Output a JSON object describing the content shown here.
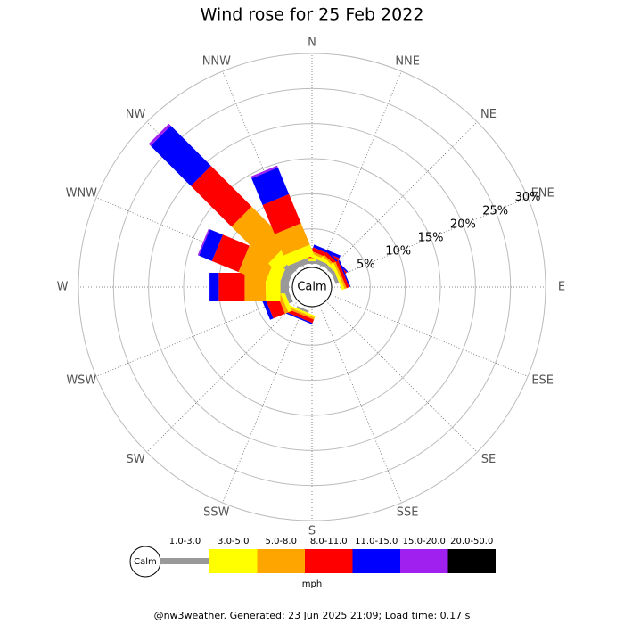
{
  "chart_data": {
    "type": "windrose",
    "title": "Wind rose for 25 Feb 2022",
    "directions": [
      "N",
      "NNE",
      "NE",
      "ENE",
      "E",
      "ESE",
      "SE",
      "SSE",
      "S",
      "SSW",
      "SW",
      "WSW",
      "W",
      "WNW",
      "NW",
      "NNW"
    ],
    "calm_label": "Calm",
    "rlim": [
      0,
      30
    ],
    "rticks": [
      {
        "value": 5,
        "label": "5%"
      },
      {
        "value": 10,
        "label": "10%"
      },
      {
        "value": 15,
        "label": "15%"
      },
      {
        "value": 20,
        "label": "20%"
      },
      {
        "value": 25,
        "label": "25%"
      },
      {
        "value": 30,
        "label": "30%"
      }
    ],
    "unit": "mph",
    "series": [
      {
        "name": "1.0-3.0",
        "color": "#999999",
        "values": [
          0.4,
          0.6,
          0.5,
          0.5,
          0,
          0,
          0,
          0,
          0,
          0.3,
          0,
          0.6,
          1.2,
          1.2,
          1.5,
          0.8
        ]
      },
      {
        "name": "3.0-5.0",
        "color": "#ffff00",
        "values": [
          0.3,
          0.5,
          0.4,
          0.4,
          0,
          0,
          0,
          0,
          0,
          0.3,
          0,
          0.6,
          2.1,
          1.9,
          2.0,
          1.6
        ]
      },
      {
        "name": "5.0-8.0",
        "color": "#ffa500",
        "values": [
          0.2,
          0.3,
          0.3,
          0.3,
          0,
          0,
          0,
          0,
          0,
          0.3,
          0,
          0.5,
          3.0,
          4.1,
          7.4,
          3.3
        ]
      },
      {
        "name": "8.0-11.0",
        "color": "#ff0000",
        "values": [
          0.3,
          0.6,
          0.5,
          0.4,
          0,
          0,
          0,
          0,
          0,
          0.5,
          0,
          1.8,
          3.7,
          4.1,
          8.2,
          4.5
        ]
      },
      {
        "name": "11.0-15.0",
        "color": "#0000ff",
        "values": [
          0,
          0.4,
          0.2,
          0.2,
          0,
          0,
          0,
          0,
          0,
          0.2,
          0,
          0.5,
          1.3,
          2.0,
          8.1,
          4.1
        ]
      },
      {
        "name": "15.0-20.0",
        "color": "#a020f0",
        "values": [
          0,
          0,
          0,
          0,
          0,
          0,
          0,
          0,
          0,
          0,
          0,
          0,
          0,
          0.2,
          0.4,
          0.3
        ]
      },
      {
        "name": "20.0-50.0",
        "color": "#000000",
        "values": [
          0,
          0,
          0,
          0,
          0,
          0,
          0,
          0,
          0,
          0,
          0,
          0,
          0,
          0,
          0,
          0
        ]
      }
    ],
    "footer": "@nw3weather. Generated: 23 Jun 2025 21:09; Load time: 0.17 s"
  }
}
